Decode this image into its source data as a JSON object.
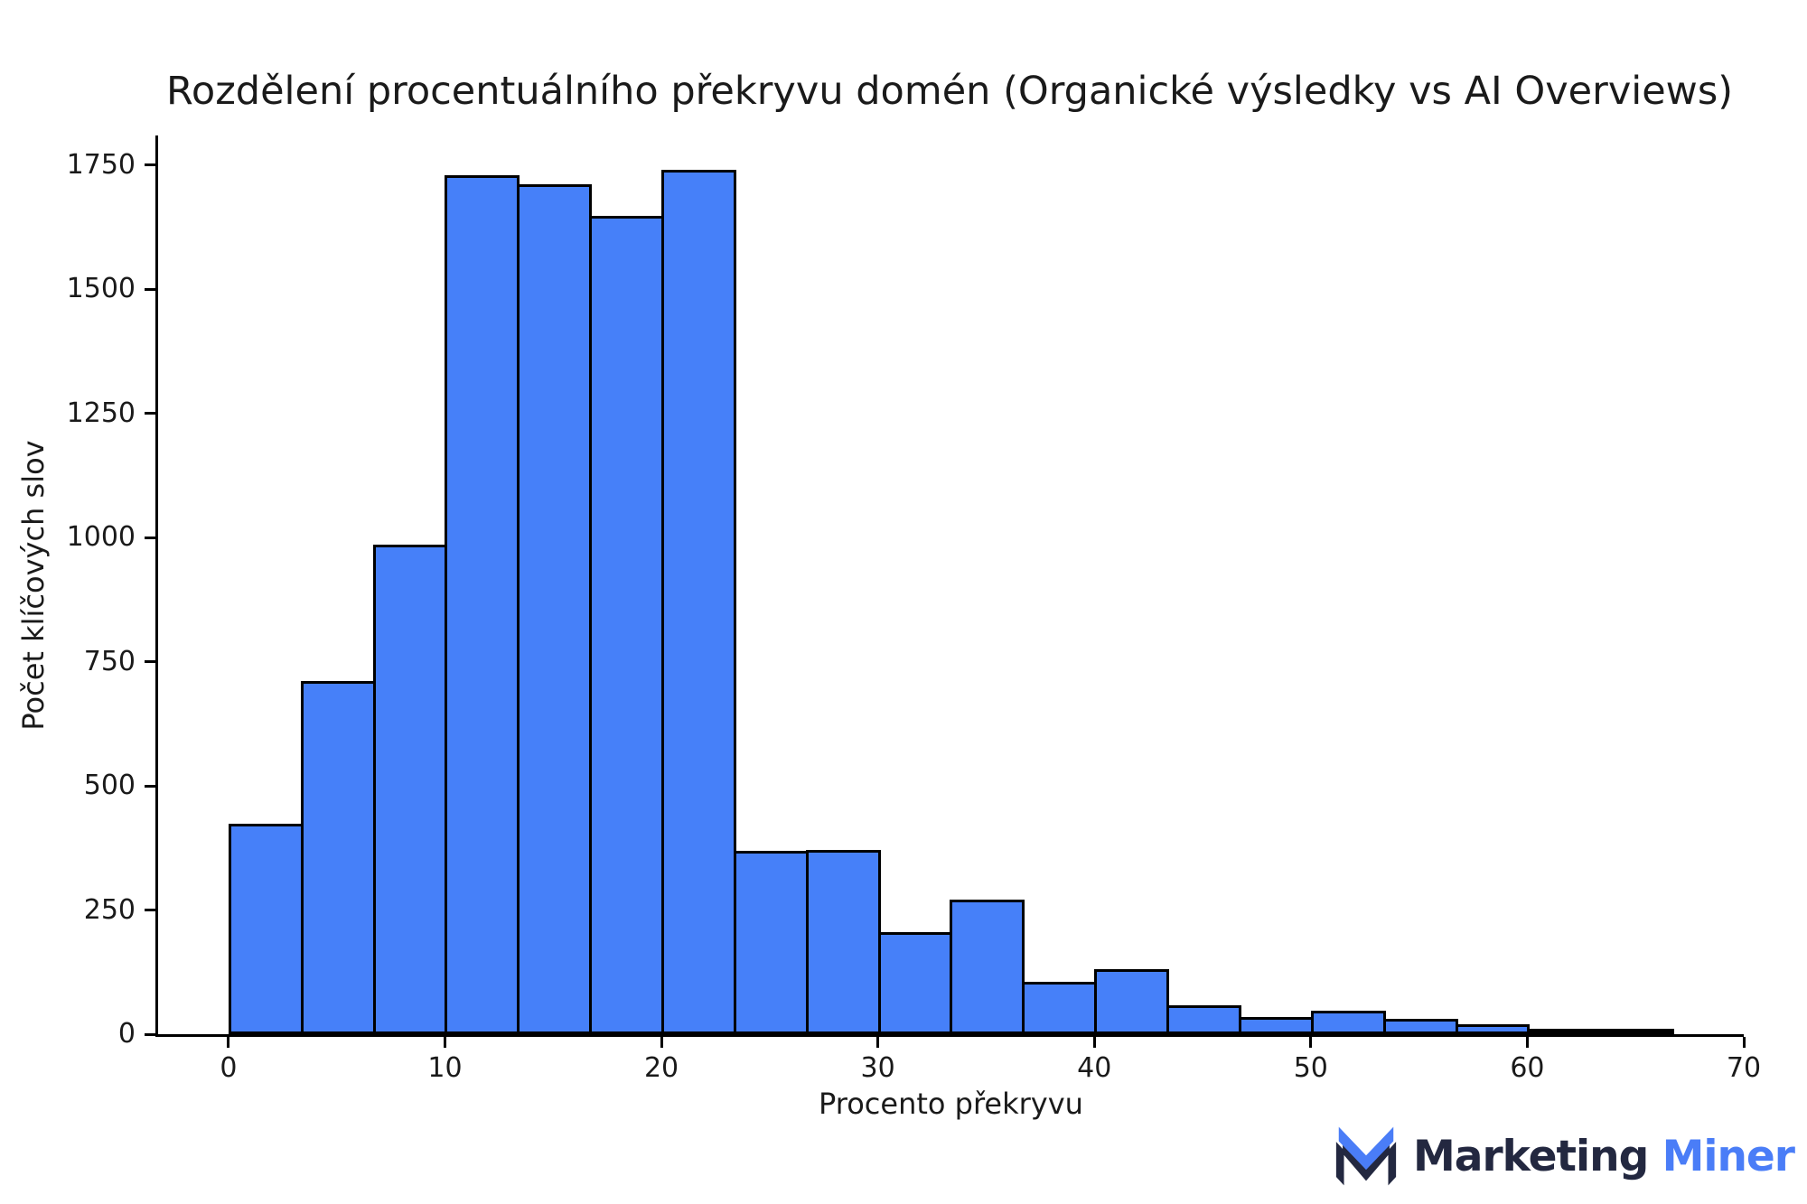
{
  "page": {
    "background": "#ffffff"
  },
  "chart_data": {
    "type": "bar",
    "subtype": "histogram",
    "title": "Rozdělení procentuálního překryvu domén (Organické výsledky vs AI Overviews)",
    "xlabel": "Procento překryvu",
    "ylabel": "Počet klíčových slov",
    "bin_start": 0,
    "bin_width": 3.3333,
    "bin_edges": [
      0,
      3.33,
      6.67,
      10,
      13.33,
      16.67,
      20,
      23.33,
      26.67,
      30,
      33.33,
      36.67,
      40,
      43.33,
      46.67,
      50,
      53.33,
      56.67,
      60,
      63.33,
      66.67
    ],
    "values": [
      418,
      705,
      980,
      1724,
      1707,
      1642,
      1736,
      363,
      366,
      201,
      265,
      100,
      125,
      53,
      30,
      41,
      25,
      14,
      4,
      2
    ],
    "xticks": [
      0,
      10,
      20,
      30,
      40,
      50,
      60,
      70
    ],
    "yticks": [
      0,
      250,
      500,
      750,
      1000,
      1250,
      1500,
      1750
    ],
    "xlim": [
      -3.25,
      70
    ],
    "ylim": [
      0,
      1810
    ],
    "grid": false,
    "legend": null,
    "bar_color": "#4680F9",
    "bar_edge_color": "#000000",
    "axis_color": "#000000",
    "text_color": "#1a1a1a"
  },
  "logo": {
    "brand_first": "Marketing",
    "brand_second": "Miner",
    "color_first": "#232840",
    "color_second": "#4A7DF7",
    "icon": "marketing-miner-m-check-logo"
  }
}
